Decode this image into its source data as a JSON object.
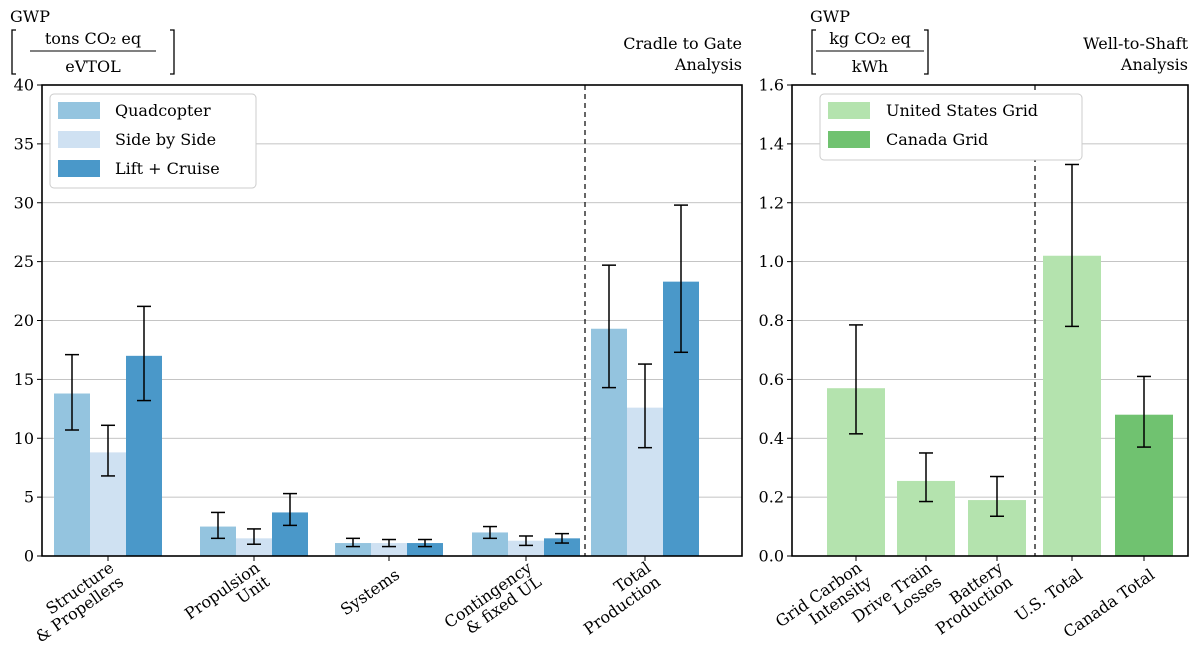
{
  "chart_data": [
    {
      "type": "bar",
      "ylabel_top": "GWP",
      "ylabel_num": "tons CO₂ eq",
      "ylabel_den": "eVTOL",
      "annotation_line1": "Cradle to Gate",
      "annotation_line2": "Analysis",
      "ylim": [
        0,
        40
      ],
      "yticks": [
        "0",
        "5",
        "10",
        "15",
        "20",
        "25",
        "30",
        "35",
        "40"
      ],
      "grid": "horizontal",
      "legend_position": "top-left",
      "divider_after_category": 3,
      "categories": [
        [
          "Structure",
          "& Propellers"
        ],
        [
          "Propulsion",
          "Unit"
        ],
        [
          "Systems"
        ],
        [
          "Contingency",
          "& fixed UL"
        ],
        [
          "Total",
          "Production"
        ]
      ],
      "series": [
        {
          "name": "Quadcopter",
          "color": "#94c4df",
          "values": [
            13.8,
            2.5,
            1.1,
            2.0,
            19.3
          ],
          "err_low": [
            10.7,
            1.5,
            0.8,
            1.5,
            14.3
          ],
          "err_high": [
            17.1,
            3.7,
            1.5,
            2.5,
            24.7
          ]
        },
        {
          "name": "Side by Side",
          "color": "#cfe1f2",
          "values": [
            8.8,
            1.5,
            1.1,
            1.3,
            12.6
          ],
          "err_low": [
            6.8,
            1.0,
            0.8,
            0.9,
            9.2
          ],
          "err_high": [
            11.1,
            2.3,
            1.4,
            1.7,
            16.3
          ]
        },
        {
          "name": "Lift + Cruise",
          "color": "#4a98c9",
          "values": [
            17.0,
            3.7,
            1.1,
            1.5,
            23.3
          ],
          "err_low": [
            13.2,
            2.6,
            0.8,
            1.1,
            17.3
          ],
          "err_high": [
            21.2,
            5.3,
            1.4,
            1.9,
            29.8
          ]
        }
      ]
    },
    {
      "type": "bar",
      "ylabel_top": "GWP",
      "ylabel_num": "kg CO₂ eq",
      "ylabel_den": "kWh",
      "annotation_line1": "Well-to-Shaft",
      "annotation_line2": "Analysis",
      "ylim": [
        0,
        1.6
      ],
      "yticks": [
        "0.0",
        "0.2",
        "0.4",
        "0.6",
        "0.8",
        "1.0",
        "1.2",
        "1.4",
        "1.6"
      ],
      "grid": "horizontal",
      "legend_position": "top-left",
      "divider_after_category": 2,
      "legend": [
        {
          "name": "United States Grid",
          "color": "#b4e3ae"
        },
        {
          "name": "Canada Grid",
          "color": "#70c270"
        }
      ],
      "categories": [
        [
          "Grid Carbon",
          "Intensity"
        ],
        [
          "Drive Train",
          "Losses"
        ],
        [
          "Battery",
          "Production"
        ],
        [
          "U.S. Total"
        ],
        [
          "Canada Total"
        ]
      ],
      "values": [
        0.57,
        0.255,
        0.19,
        1.02,
        0.48
      ],
      "bar_colors": [
        "#b4e3ae",
        "#b4e3ae",
        "#b4e3ae",
        "#b4e3ae",
        "#70c270"
      ],
      "err_low": [
        0.415,
        0.185,
        0.135,
        0.78,
        0.37
      ],
      "err_high": [
        0.785,
        0.35,
        0.27,
        1.33,
        0.61
      ]
    }
  ]
}
